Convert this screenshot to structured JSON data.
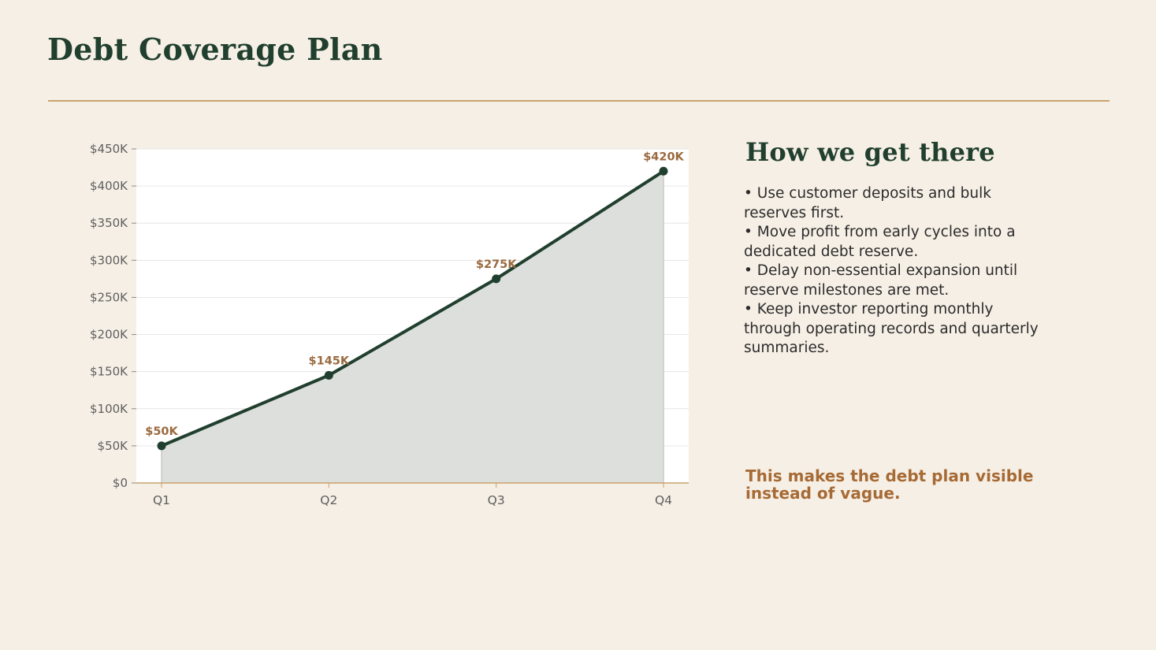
{
  "title": "Debt Coverage Plan",
  "side": {
    "heading": "How we get there",
    "bullets": [
      "Use customer deposits and bulk reserves first.",
      "Move profit from early cycles into a dedicated debt reserve.",
      "Delay non-essential expansion until reserve milestones are met.",
      "Keep investor reporting monthly through operating records and quarterly summaries."
    ],
    "callout": "This makes the debt plan visible instead of vague."
  },
  "colors": {
    "background": "#f6efe5",
    "title": "#213f2e",
    "accent": "#c9a46c",
    "line": "#213f2e",
    "area": "#dcdfdc",
    "label": "#9a6a3f",
    "callout": "#a66a35"
  },
  "chart_data": {
    "type": "area",
    "categories": [
      "Q1",
      "Q2",
      "Q3",
      "Q4"
    ],
    "values": [
      50000,
      145000,
      275000,
      420000
    ],
    "data_labels": [
      "$50K",
      "$145K",
      "$275K",
      "$420K"
    ],
    "yticks": [
      0,
      50000,
      100000,
      150000,
      200000,
      250000,
      300000,
      350000,
      400000,
      450000
    ],
    "ytick_labels": [
      "$0",
      "$50K",
      "$100K",
      "$150K",
      "$200K",
      "$250K",
      "$300K",
      "$350K",
      "$400K",
      "$450K"
    ],
    "ylim": [
      0,
      450000
    ],
    "title": "",
    "xlabel": "",
    "ylabel": "",
    "grid": true,
    "legend": "none"
  }
}
